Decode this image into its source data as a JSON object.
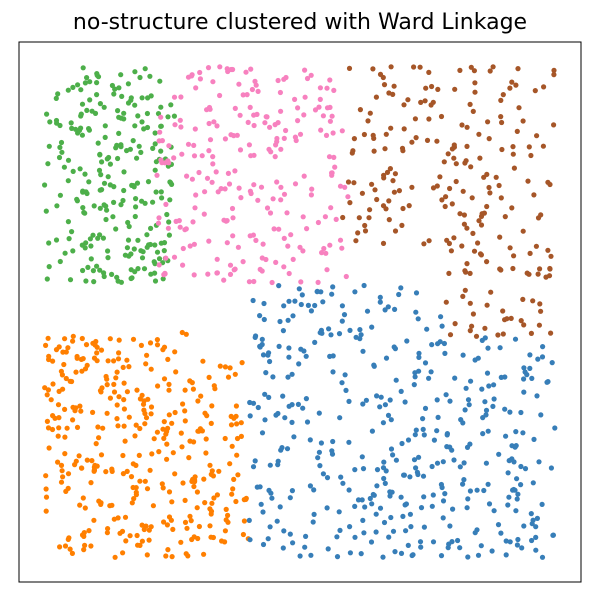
{
  "chart_data": {
    "type": "scatter",
    "title": "no-structure clustered with Ward Linkage",
    "xlabel": "",
    "ylabel": "",
    "xlim": [
      -0.05,
      1.05
    ],
    "ylim": [
      -0.05,
      1.05
    ],
    "axes_visible": false,
    "ticks_visible": false,
    "grid": false,
    "legend": "none",
    "series": [
      {
        "color": "#4daf4a",
        "region": {
          "x": [
            0.0,
            0.26
          ],
          "y": [
            0.56,
            1.0
          ]
        },
        "count": 250,
        "cut": "green"
      },
      {
        "color": "#f781bf",
        "region": {
          "x": [
            0.22,
            0.6
          ],
          "y": [
            0.55,
            1.0
          ]
        },
        "count": 240,
        "cut": "pink"
      },
      {
        "color": "#a65628",
        "region": {
          "x": [
            0.58,
            1.0
          ],
          "y": [
            0.45,
            1.0
          ]
        },
        "count": 230,
        "cut": "brown"
      },
      {
        "color": "#ff7f00",
        "region": {
          "x": [
            0.0,
            0.4
          ],
          "y": [
            0.0,
            0.46
          ]
        },
        "count": 360,
        "cut": "orange"
      },
      {
        "color": "#377eb8",
        "region": {
          "x": [
            0.33,
            1.0
          ],
          "y": [
            0.0,
            0.56
          ]
        },
        "count": 420,
        "cut": "blue"
      }
    ]
  }
}
